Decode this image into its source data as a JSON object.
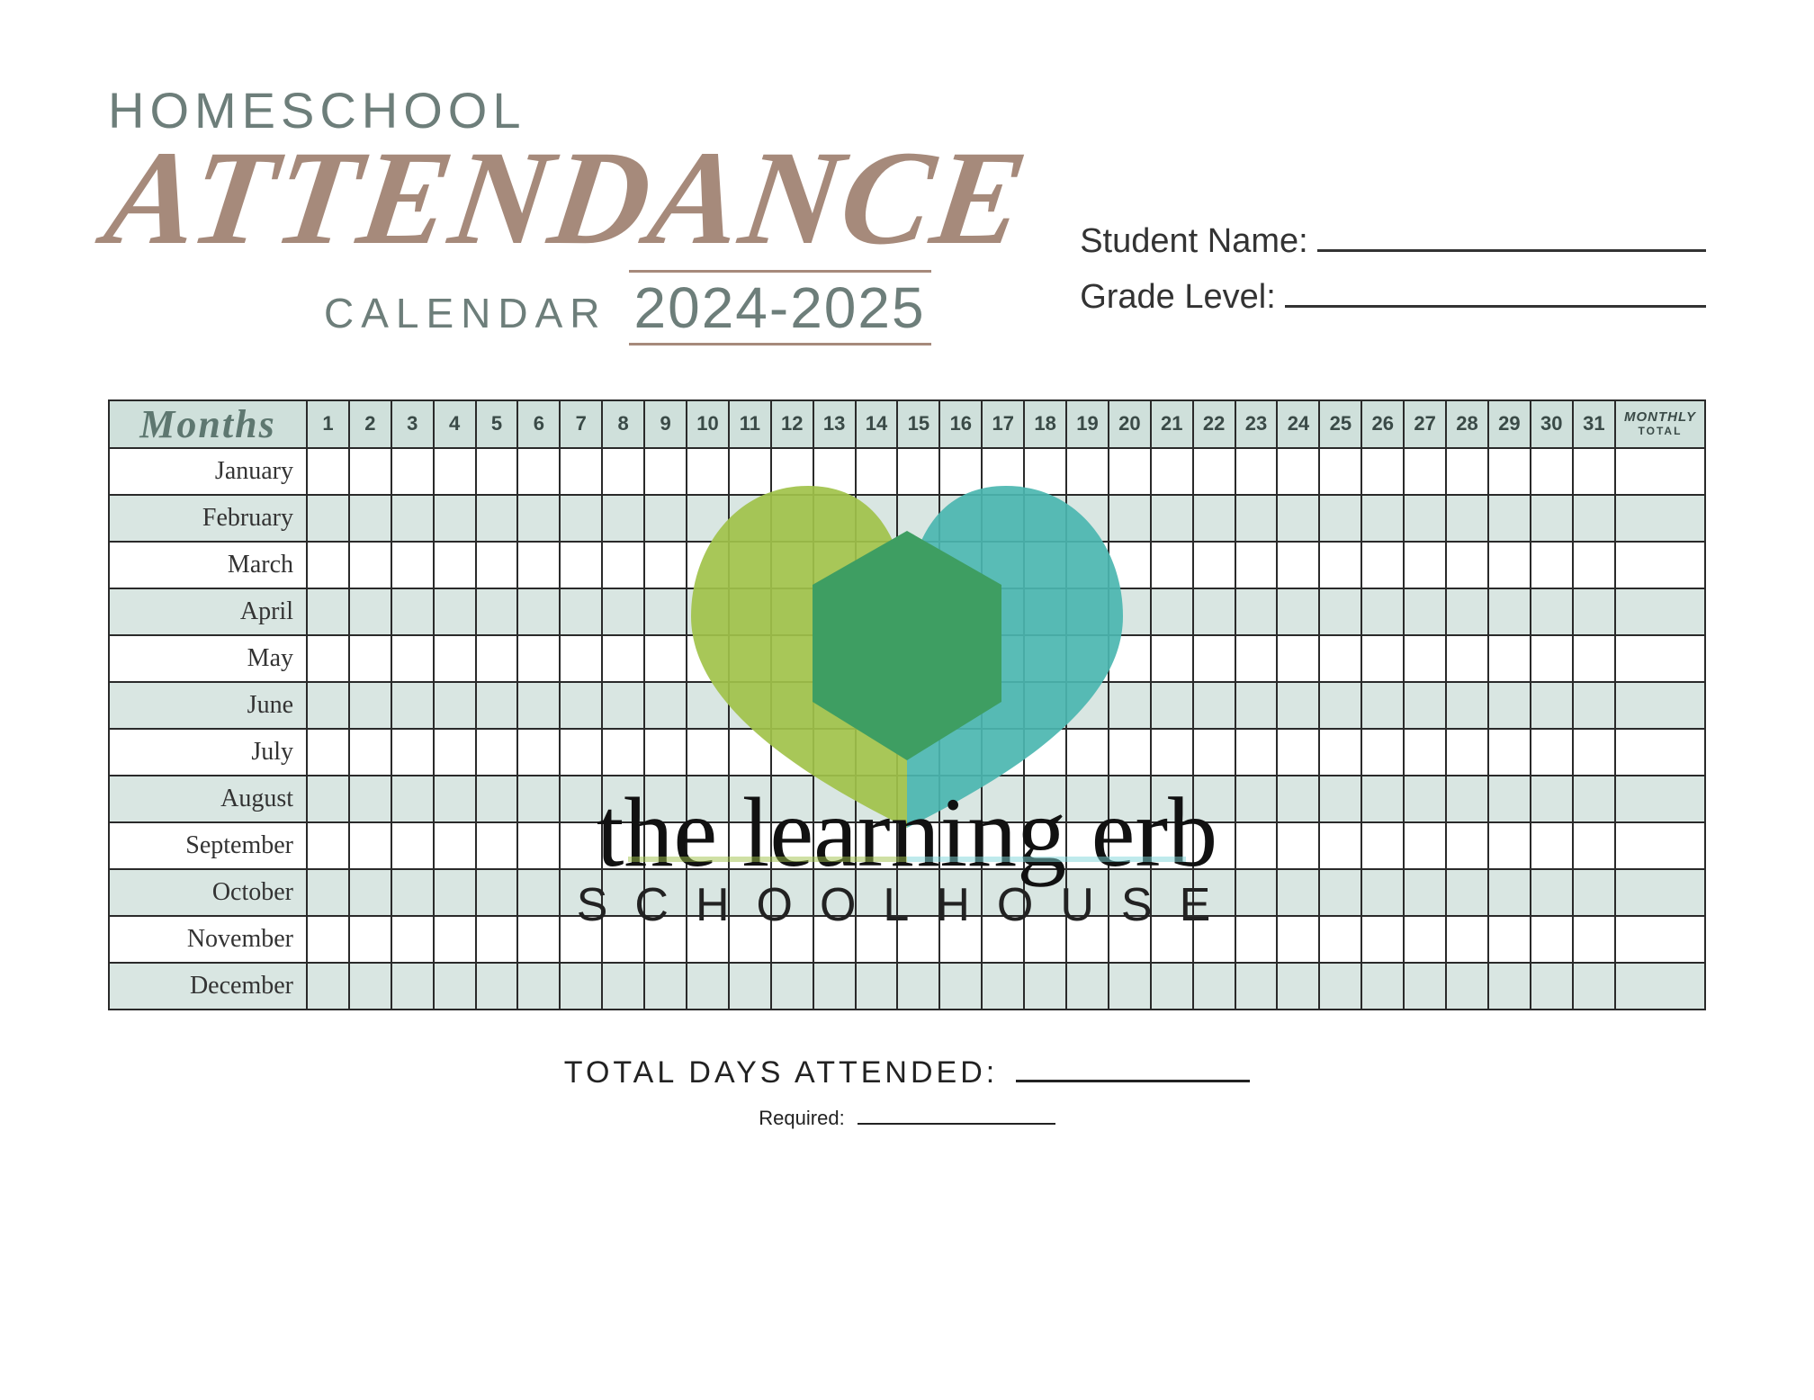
{
  "header": {
    "homeschool": "HOMESCHOOL",
    "attendance": "ATTENDANCE",
    "calendar": "CALENDAR",
    "year": "2024-2025"
  },
  "fields": {
    "student_name_label": "Student Name:",
    "grade_level_label": "Grade Level:"
  },
  "table": {
    "months_header": "Months",
    "monthly_total_top": "MONTHLY",
    "monthly_total_sub": "TOTAL",
    "days": [
      "1",
      "2",
      "3",
      "4",
      "5",
      "6",
      "7",
      "8",
      "9",
      "10",
      "11",
      "12",
      "13",
      "14",
      "15",
      "16",
      "17",
      "18",
      "19",
      "20",
      "21",
      "22",
      "23",
      "24",
      "25",
      "26",
      "27",
      "28",
      "29",
      "30",
      "31"
    ],
    "months": [
      "January",
      "February",
      "March",
      "April",
      "May",
      "June",
      "July",
      "August",
      "September",
      "October",
      "November",
      "December"
    ],
    "alt_row_color": "#d9e6e2",
    "header_color": "#cfe0db"
  },
  "watermark": {
    "script_text": "the learning erb",
    "schoolhouse": "SCHOOLHOUSE",
    "heart_left_color": "#a1c24a",
    "heart_right_color": "#4bb6b0",
    "hexagon_color": "#3e9e62"
  },
  "footer": {
    "total_label": "TOTAL DAYS ATTENDED:",
    "required_label": "Required:"
  }
}
